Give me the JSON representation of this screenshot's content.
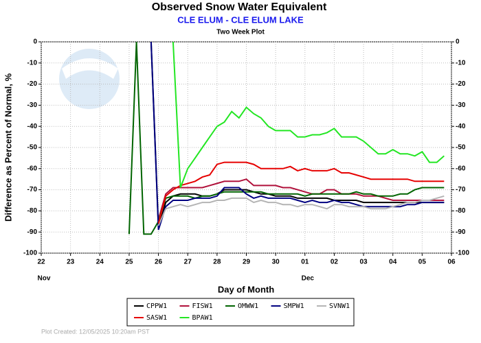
{
  "chart_data": {
    "type": "line",
    "title": "Observed Snow Water Equivalent",
    "subtitle": "CLE ELUM - CLE ELUM LAKE",
    "plot_label": "Two Week Plot",
    "xlabel": "Day of Month",
    "ylabel": "Difference as Percent of Normal, %",
    "footer": "Plot Created: 12/05/2025 10:20am PST",
    "xlim": [
      0,
      14
    ],
    "xticks": [
      {
        "value": 0,
        "label": "22"
      },
      {
        "value": 1,
        "label": "23"
      },
      {
        "value": 2,
        "label": "24"
      },
      {
        "value": 3,
        "label": "25"
      },
      {
        "value": 4,
        "label": "26"
      },
      {
        "value": 5,
        "label": "27"
      },
      {
        "value": 6,
        "label": "28"
      },
      {
        "value": 7,
        "label": "29"
      },
      {
        "value": 8,
        "label": "30"
      },
      {
        "value": 9,
        "label": "01"
      },
      {
        "value": 10,
        "label": "02"
      },
      {
        "value": 11,
        "label": "03"
      },
      {
        "value": 12,
        "label": "04"
      },
      {
        "value": 13,
        "label": "05"
      },
      {
        "value": 14,
        "label": "06"
      }
    ],
    "month_labels": [
      {
        "value": 0,
        "label": "Nov"
      },
      {
        "value": 9,
        "label": "Dec"
      }
    ],
    "ylim": [
      -100,
      0
    ],
    "yticks": [
      0,
      -10,
      -20,
      -30,
      -40,
      -50,
      -60,
      -70,
      -80,
      -90,
      -100
    ],
    "grid": true,
    "x": [
      3.0,
      3.25,
      3.5,
      3.75,
      4.0,
      4.25,
      4.5,
      4.75,
      5.0,
      5.25,
      5.5,
      5.75,
      6.0,
      6.25,
      6.5,
      6.75,
      7.0,
      7.25,
      7.5,
      7.75,
      8.0,
      8.25,
      8.5,
      8.75,
      9.0,
      9.25,
      9.5,
      9.75,
      10.0,
      10.25,
      10.5,
      10.75,
      11.0,
      11.25,
      11.5,
      11.75,
      12.0,
      12.25,
      12.5,
      12.75,
      13.0,
      13.25,
      13.5,
      13.75
    ],
    "series": [
      {
        "name": "CPPW1",
        "color": "#000000",
        "values": [
          null,
          null,
          null,
          0,
          -88,
          -76,
          -73,
          -72,
          -72,
          -72,
          -73,
          -73,
          -72,
          -70,
          -70,
          -70,
          -70,
          -71,
          -72,
          -72,
          -73,
          -73,
          -73,
          -74,
          -74,
          -74,
          -74,
          -74,
          -75,
          -75,
          -75,
          -75,
          -76,
          -76,
          -76,
          -76,
          -76,
          -76,
          -76,
          -76,
          -76,
          -76,
          -76,
          -76
        ]
      },
      {
        "name": "FISW1",
        "color": "#b0103a",
        "values": [
          null,
          null,
          null,
          null,
          -84,
          -72,
          -69,
          -69,
          -69,
          -69,
          -69,
          -68,
          -67,
          -66,
          -66,
          -66,
          -65,
          -68,
          -68,
          -68,
          -68,
          -69,
          -69,
          -70,
          -71,
          -72,
          -72,
          -70,
          -70,
          -72,
          -72,
          -72,
          -73,
          -73,
          -73,
          -74,
          -75,
          -75,
          -75,
          -75,
          -75,
          -75,
          -75,
          -75
        ]
      },
      {
        "name": "OMWW1",
        "color": "#006400",
        "values": [
          -91,
          0,
          -91,
          -91,
          -85,
          -74,
          -73,
          -73,
          -73,
          -74,
          -73,
          -73,
          -72,
          -71,
          -71,
          -71,
          -71,
          -71,
          -71,
          -72,
          -72,
          -72,
          -72,
          -72,
          -73,
          -72,
          -72,
          -72,
          -72,
          -72,
          -72,
          -71,
          -72,
          -72,
          -73,
          -73,
          -73,
          -72,
          -72,
          -70,
          -69,
          -69,
          -69,
          -69
        ]
      },
      {
        "name": "SMPW1",
        "color": "#000080",
        "values": [
          null,
          null,
          null,
          0,
          -89,
          -78,
          -75,
          -75,
          -75,
          -74,
          -74,
          -74,
          -73,
          -69,
          -69,
          -69,
          -72,
          -74,
          -73,
          -74,
          -74,
          -74,
          -74,
          -75,
          -76,
          -75,
          -76,
          -76,
          -75,
          -76,
          -76,
          -77,
          -78,
          -78,
          -78,
          -78,
          -78,
          -78,
          -77,
          -77,
          -76,
          -76,
          -76,
          -76
        ]
      },
      {
        "name": "SVNW1",
        "color": "#b4b4b4",
        "values": [
          null,
          null,
          null,
          null,
          -87,
          -79,
          -78,
          -77,
          -78,
          -77,
          -76,
          -76,
          -75,
          -75,
          -74,
          -74,
          -74,
          -76,
          -75,
          -76,
          -76,
          -77,
          -77,
          -78,
          -77,
          -77,
          -78,
          -79,
          -77,
          -77,
          -78,
          -78,
          -78,
          -79,
          -79,
          -79,
          -78,
          -77,
          -76,
          -76,
          -75,
          -75,
          -74,
          -73
        ]
      },
      {
        "name": "SASW1",
        "color": "#e60000",
        "values": [
          null,
          null,
          null,
          null,
          -86,
          -73,
          -70,
          -68,
          -67,
          -66,
          -64,
          -63,
          -58,
          -57,
          -57,
          -57,
          -57,
          -58,
          -60,
          -60,
          -60,
          -60,
          -59,
          -61,
          -60,
          -61,
          -61,
          -61,
          -60,
          -62,
          -62,
          -63,
          -64,
          -65,
          -65,
          -65,
          -65,
          -65,
          -65,
          -66,
          -66,
          -66,
          -66,
          -66
        ]
      },
      {
        "name": "BPAW1",
        "color": "#22e622",
        "values": [
          null,
          null,
          null,
          null,
          null,
          null,
          0,
          -69,
          -60,
          -55,
          -50,
          -45,
          -40,
          -38,
          -33,
          -36,
          -31,
          -34,
          -36,
          -40,
          -42,
          -42,
          -42,
          -45,
          -45,
          -44,
          -44,
          -43,
          -41,
          -45,
          -45,
          -45,
          -47,
          -50,
          -53,
          -53,
          -51,
          -53,
          -53,
          -54,
          -52,
          -57,
          -57,
          -54
        ]
      }
    ]
  }
}
